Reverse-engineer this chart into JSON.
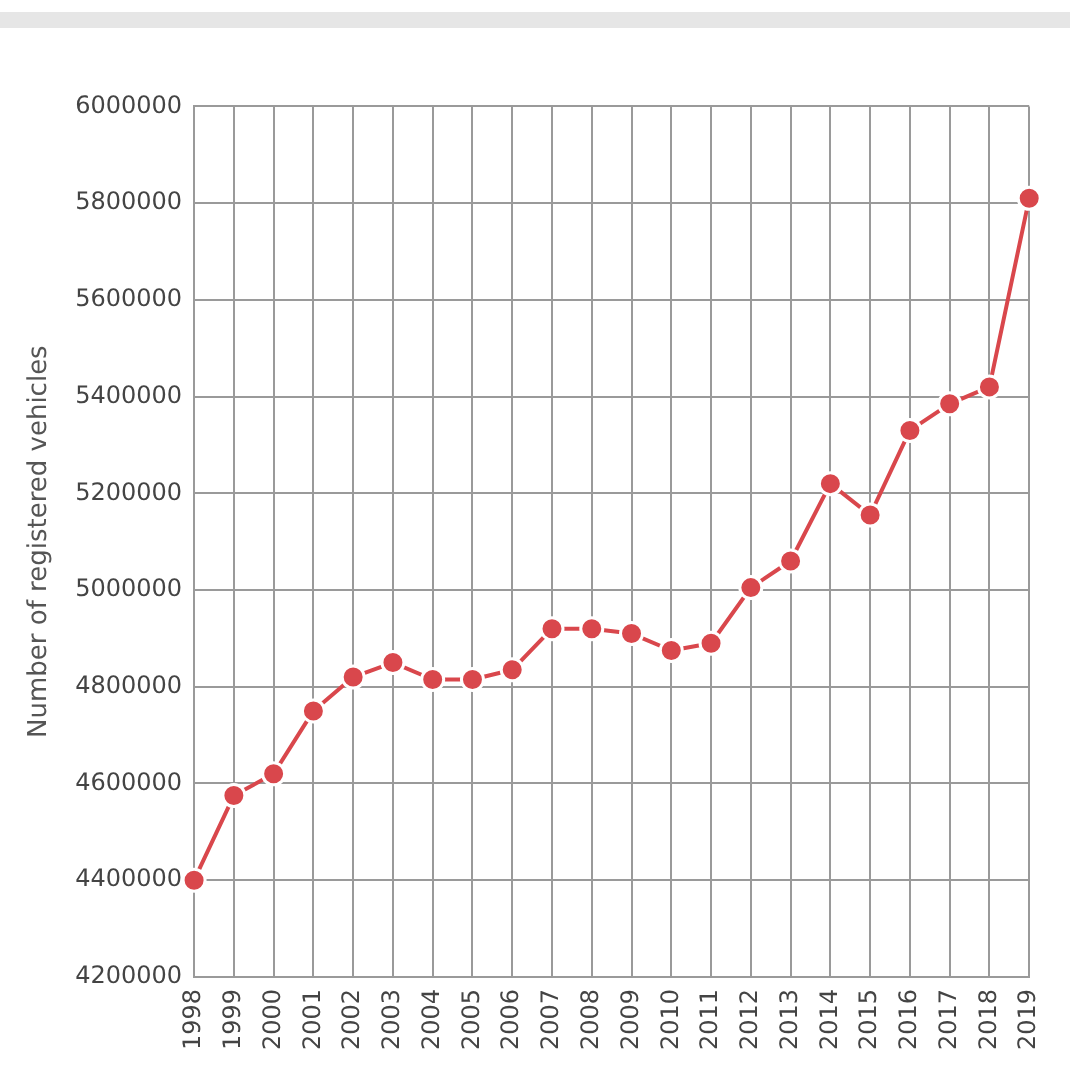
{
  "chart_data": {
    "type": "line",
    "ylabel": "Number of registered vehicles",
    "categories": [
      "1998",
      "1999",
      "2000",
      "2001",
      "2002",
      "2003",
      "2004",
      "2005",
      "2006",
      "2007",
      "2008",
      "2009",
      "2010",
      "2011",
      "2012",
      "2013",
      "2014",
      "2015",
      "2016",
      "2017",
      "2018",
      "2019"
    ],
    "series": [
      {
        "color": "#d9474c",
        "values": [
          4400000,
          4575000,
          4620000,
          4750000,
          4820000,
          4850000,
          4815000,
          4815000,
          4835000,
          4920000,
          4920000,
          4910000,
          4875000,
          4890000,
          5005000,
          5060000,
          5220000,
          5155000,
          5330000,
          5385000,
          5420000,
          5810000
        ]
      }
    ],
    "ylim": [
      4200000,
      6000000
    ],
    "yticks": [
      4200000,
      4400000,
      4600000,
      4800000,
      5000000,
      5200000,
      5400000,
      5600000,
      5800000,
      6000000
    ],
    "grid": true,
    "legend": false,
    "marker": "circle",
    "line_style": "solid"
  }
}
